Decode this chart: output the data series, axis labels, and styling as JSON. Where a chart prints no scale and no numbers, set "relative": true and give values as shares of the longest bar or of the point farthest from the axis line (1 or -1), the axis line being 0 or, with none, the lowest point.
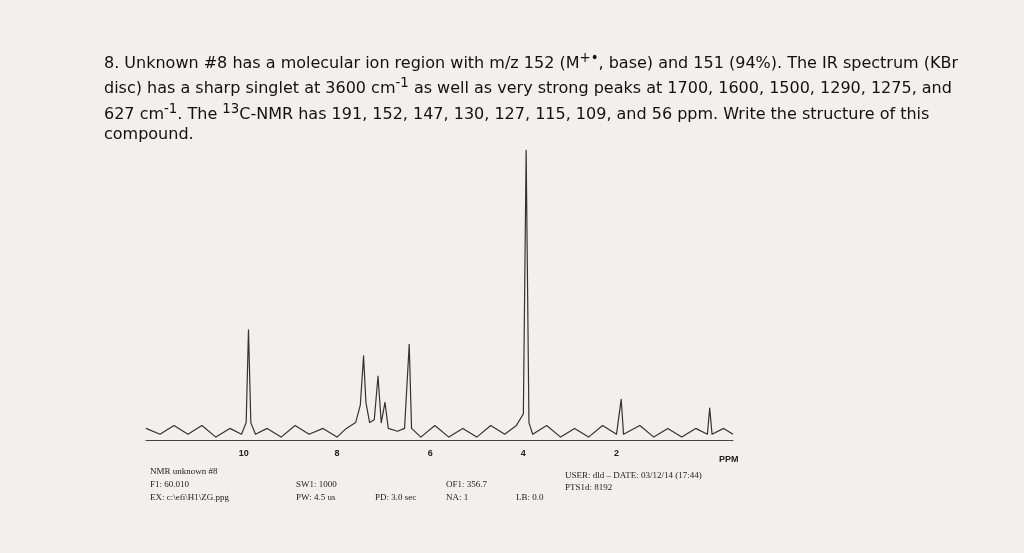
{
  "chart_data": {
    "type": "line",
    "title": "8. Unknown #8 has a molecular ion region with m/z 152 (M$^{+•}$, base) and 151 (94%). The IR spectrum (KBr disc) has a sharp singlet at 3600 cm$^{-1}$ as well as very strong peaks at 1700, 1600, 1500, 1290, 1275, and 627 cm$^{-1}$. The $^{13}$C-NMR has 191, 152, 147, 130, 127, 115, 109, and 56 ppm. Write the structure of this compound.",
    "xlabel": "PPM",
    "annotations": [
      "NMR unknown #8",
      "F1: 60.010",
      "EX: c:\\efi\\H1\\ZG.ppg",
      "SW1: 1000",
      "PW: 4.5 us",
      "PD: 3.0 sec",
      "OF1: 356.7",
      "NA: 1",
      "LB: 0.0",
      "USER: dld – DATE: 03/12/14 (17:44)",
      "PTS1d: 8192"
    ],
    "relative": true,
    "xlim": [
      12.1,
      -0.5
    ],
    "xticks": [
      10,
      8,
      6,
      4,
      2
    ],
    "x": [
      12.1,
      11.8,
      11.5,
      11.2,
      10.9,
      10.6,
      10.3,
      10.05,
      9.95,
      9.9,
      9.85,
      9.75,
      9.5,
      9.2,
      8.9,
      8.6,
      8.3,
      8.0,
      7.8,
      7.6,
      7.5,
      7.43,
      7.38,
      7.3,
      7.2,
      7.12,
      7.05,
      6.97,
      6.9,
      6.7,
      6.55,
      6.45,
      6.4,
      6.2,
      5.9,
      5.6,
      5.3,
      5.0,
      4.7,
      4.4,
      4.15,
      4.0,
      3.94,
      3.88,
      3.8,
      3.5,
      3.2,
      2.9,
      2.6,
      2.3,
      2.0,
      1.9,
      1.85,
      1.5,
      1.2,
      0.9,
      0.6,
      0.3,
      0.05,
      0.0,
      -0.05,
      -0.3,
      -0.5
    ],
    "series": [
      {
        "color": "#333333",
        "values": [
          0.04,
          0.02,
          0.05,
          0.02,
          0.05,
          0.01,
          0.04,
          0.02,
          0.06,
          0.38,
          0.06,
          0.02,
          0.04,
          0.01,
          0.05,
          0.02,
          0.04,
          0.01,
          0.04,
          0.06,
          0.12,
          0.29,
          0.13,
          0.06,
          0.07,
          0.22,
          0.06,
          0.13,
          0.04,
          0.03,
          0.04,
          0.33,
          0.04,
          0.01,
          0.05,
          0.01,
          0.04,
          0.01,
          0.05,
          0.02,
          0.05,
          0.09,
          1,
          0.06,
          0.02,
          0.05,
          0.01,
          0.04,
          0.01,
          0.05,
          0.02,
          0.14,
          0.02,
          0.05,
          0.01,
          0.04,
          0.01,
          0.04,
          0.02,
          0.11,
          0.02,
          0.04,
          0.02
        ]
      }
    ],
    "grid": false,
    "marker": "none",
    "line_style": "solid"
  }
}
